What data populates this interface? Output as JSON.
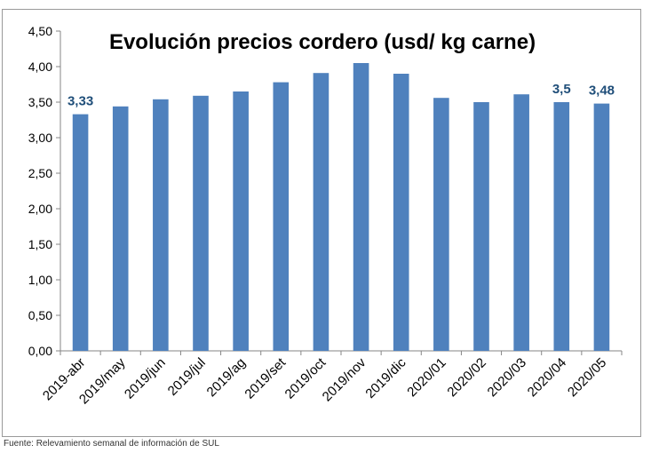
{
  "chart_data": {
    "type": "bar",
    "title": "Evolución precios cordero (usd/ kg carne)",
    "xlabel": "",
    "ylabel": "",
    "categories": [
      "2019-abr",
      "2019/may",
      "2019/jun",
      "2019/jul",
      "2019/ag",
      "2019/set",
      "2019/oct",
      "2019/nov",
      "2019/dic",
      "2020/01",
      "2020/02",
      "2020/03",
      "2020/04",
      "2020/05"
    ],
    "values": [
      3.33,
      3.44,
      3.54,
      3.59,
      3.65,
      3.78,
      3.91,
      4.05,
      3.9,
      3.56,
      3.5,
      3.61,
      3.5,
      3.48
    ],
    "data_labels": [
      "3,33",
      "",
      "",
      "",
      "",
      "",
      "",
      "",
      "",
      "",
      "",
      "",
      "3,5",
      "3,48"
    ],
    "ylim": [
      0,
      4.5
    ],
    "yticks": [
      "0,00",
      "0,50",
      "1,00",
      "1,50",
      "2,00",
      "2,50",
      "3,00",
      "3,50",
      "4,00",
      "4,50"
    ],
    "grid": false,
    "legend": "none",
    "bar_color": "#4f81bd",
    "label_color": "#1f4e79"
  },
  "footer": {
    "source": "Fuente: Relevamiento semanal de información de SUL"
  }
}
